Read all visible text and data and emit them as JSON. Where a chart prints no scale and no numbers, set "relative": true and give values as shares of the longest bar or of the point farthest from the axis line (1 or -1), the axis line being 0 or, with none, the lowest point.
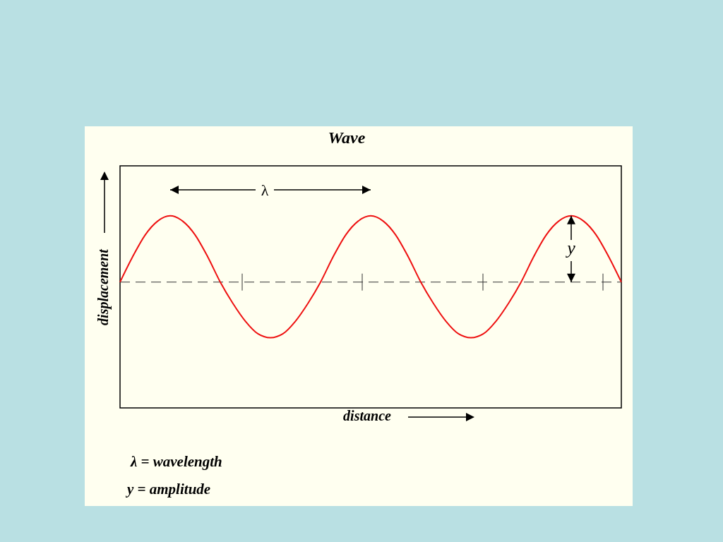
{
  "chart_data": {
    "type": "line",
    "title": "Wave",
    "xlabel": "distance",
    "ylabel": "displacement",
    "relative": true,
    "categories": [
      null,
      null,
      null,
      null,
      null,
      null,
      null,
      null,
      null,
      null,
      null,
      null,
      null,
      null,
      null,
      null,
      null,
      null,
      null,
      null,
      null,
      null,
      null,
      null,
      null,
      null,
      null,
      null,
      null,
      null,
      null,
      null,
      null,
      null,
      null,
      null,
      null,
      null,
      null,
      null,
      null
    ],
    "series": [
      {
        "color": "#ee1111",
        "values": [
          0,
          0.38,
          0.71,
          0.92,
          1,
          0.92,
          0.71,
          0.38,
          0,
          -0.32,
          -0.59,
          -0.78,
          -0.84,
          -0.78,
          -0.59,
          -0.32,
          0,
          0.38,
          0.71,
          0.92,
          1,
          0.92,
          0.71,
          0.38,
          0,
          -0.32,
          -0.59,
          -0.78,
          -0.84,
          -0.78,
          -0.59,
          -0.32,
          0,
          0.38,
          0.71,
          0.92,
          1,
          0.92,
          0.71,
          0.38,
          0
        ]
      }
    ],
    "ref_lines": [
      {
        "axis": "y",
        "value": 0,
        "line_style": "dashed",
        "color": "#333333"
      }
    ],
    "annotations": [
      "λ",
      "y",
      "λ = wavelength",
      "y = amplitude"
    ]
  }
}
